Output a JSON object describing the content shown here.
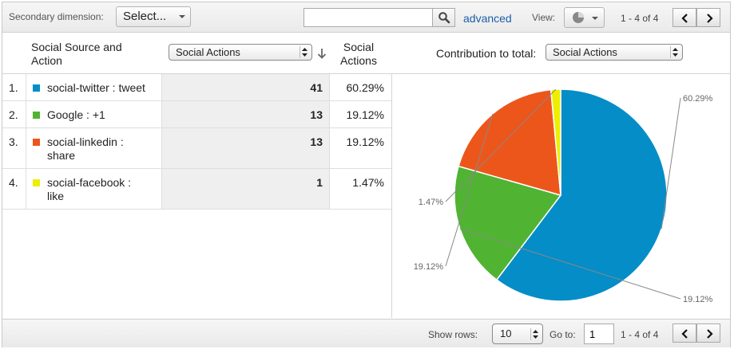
{
  "toolbar": {
    "secondary_dimension_label": "Secondary dimension:",
    "select_label": "Select...",
    "search_placeholder": "",
    "search_icon": "search-icon",
    "advanced_label": "advanced",
    "view_label": "View:",
    "view_icon": "pie-chart-icon",
    "page_range": "1 - 4 of 4"
  },
  "header": {
    "dimension_column": "Social Source and Action",
    "metric_select": "Social Actions",
    "metric_column": "Social Actions",
    "contribution_label": "Contribution to total:",
    "contribution_select": "Social Actions"
  },
  "rows": [
    {
      "index": "1.",
      "label": "social-twitter : tweet",
      "value": "41",
      "percent": "60.29%",
      "color": "#058dc7"
    },
    {
      "index": "2.",
      "label": "Google : +1",
      "value": "13",
      "percent": "19.12%",
      "color": "#50b432"
    },
    {
      "index": "3.",
      "label": "social-linkedin : share",
      "value": "13",
      "percent": "19.12%",
      "color": "#ed561b"
    },
    {
      "index": "4.",
      "label": "social-facebook : like",
      "value": "1",
      "percent": "1.47%",
      "color": "#edef00"
    }
  ],
  "chart_data": {
    "type": "pie",
    "categories": [
      "social-twitter : tweet",
      "Google : +1",
      "social-linkedin : share",
      "social-facebook : like"
    ],
    "values": [
      41,
      13,
      13,
      1
    ],
    "labels": [
      "60.29%",
      "19.12%",
      "19.12%",
      "1.47%"
    ],
    "colors": [
      "#058dc7",
      "#50b432",
      "#ed561b",
      "#edef00"
    ]
  },
  "footer": {
    "show_rows_label": "Show rows:",
    "rows_value": "10",
    "goto_label": "Go to:",
    "goto_value": "1",
    "page_range": "1 - 4 of 4"
  }
}
